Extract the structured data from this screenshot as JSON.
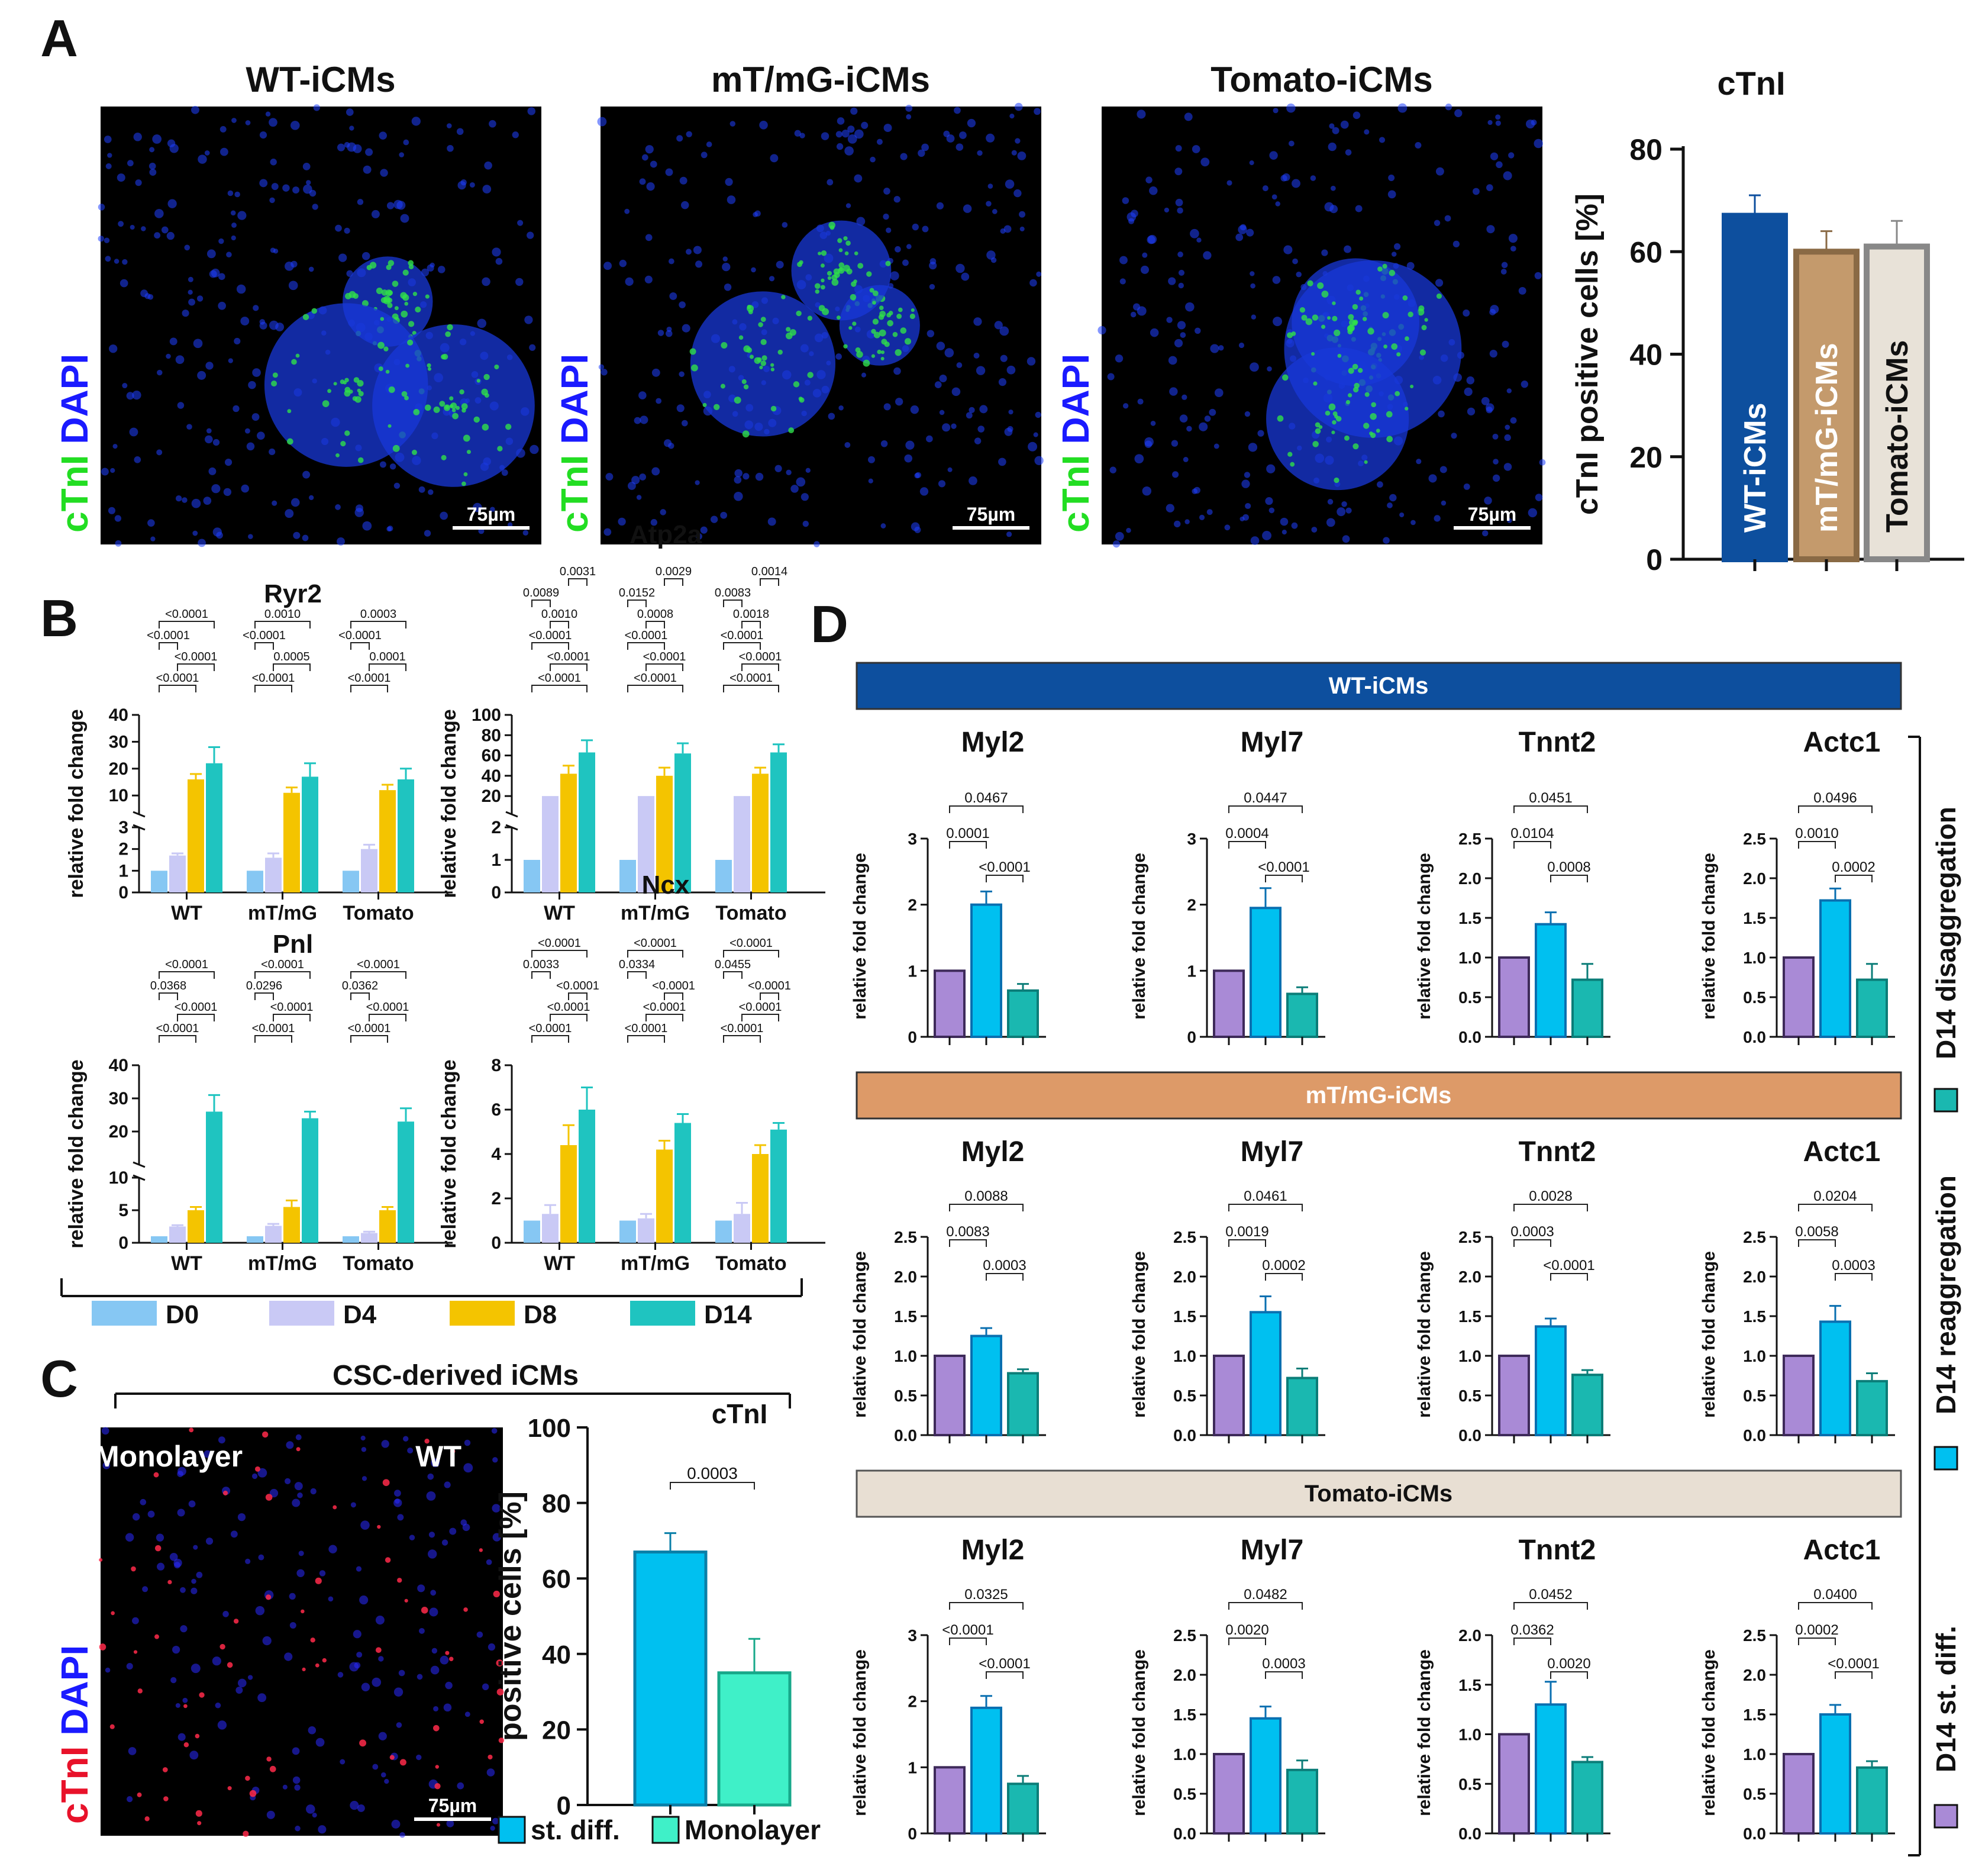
{
  "panels": {
    "A": "A",
    "B": "B",
    "C": "C",
    "D": "D"
  },
  "legend_B": [
    {
      "label": "D0",
      "color": "#86c7f3"
    },
    {
      "label": "D4",
      "color": "#c9c9f5"
    },
    {
      "label": "D8",
      "color": "#f4c400"
    },
    {
      "label": "D14",
      "color": "#1fc4c0"
    }
  ],
  "legend_C": [
    {
      "label": "st. diff.",
      "color": "#00c0f0"
    },
    {
      "label": "Monolayer",
      "color": "#3ff0c8"
    }
  ],
  "legend_D": [
    {
      "label": "D14 st. diff.",
      "color": "#a98ad6"
    },
    {
      "label": "D14 reaggregation",
      "color": "#00c0f0"
    },
    {
      "label": "D14 disaggregation",
      "color": "#1ab8b0"
    }
  ],
  "micrographs": [
    {
      "title": "WT-iCMs",
      "stain1": "cTnI",
      "stain2": "DAPI",
      "scale": "75µm"
    },
    {
      "title": "mT/mG-iCMs",
      "stain1": "cTnI",
      "stain2": "DAPI",
      "scale": "75µm"
    },
    {
      "title": "Tomato-iCMs",
      "stain1": "cTnI",
      "stain2": "DAPI",
      "scale": "75µm"
    }
  ],
  "micrograph_C": {
    "title": "CSC-derived iCMs",
    "label_left": "Monolayer",
    "label_right": "WT",
    "stain1": "cTnI",
    "stain2": "DAPI",
    "scale": "75µm"
  },
  "row_headers_D": [
    {
      "label": "WT-iCMs",
      "color": "#0d4f9e",
      "text_color": "#ffffff"
    },
    {
      "label": "mT/mG-iCMs",
      "color": "#dd9a68",
      "text_color": "#ffffff"
    },
    {
      "label": "Tomato-iCMs",
      "color": "#e8dfd3",
      "text_color": "#111111"
    }
  ],
  "chart_data": [
    {
      "id": "A_ctni",
      "type": "bar",
      "title": "cTnI",
      "ylabel": "cTnI positive cells [%]",
      "ylim": [
        0,
        80
      ],
      "yticks": [
        0,
        20,
        40,
        60,
        80
      ],
      "categories": [
        "WT-iCMs",
        "mT/mG-iCMs",
        "Tomato-iCMs"
      ],
      "values": [
        67,
        60,
        61
      ],
      "errors": [
        4,
        4,
        5
      ],
      "colors": [
        "#0d4f9e",
        "#c49a6c",
        "#e8e2d8"
      ],
      "edge": [
        "#0d4f9e",
        "#8a6a45",
        "#888888"
      ],
      "label_colors": [
        "#ffffff",
        "#ffffff",
        "#111111"
      ]
    },
    {
      "id": "B_ryr2",
      "type": "bar",
      "title": "Ryr2",
      "ylabel": "relative fold change",
      "groups": [
        "WT",
        "mT/mG",
        "Tomato"
      ],
      "series_names": [
        "D0",
        "D4",
        "D8",
        "D14"
      ],
      "values": [
        [
          1,
          1.7,
          16,
          22
        ],
        [
          1,
          1.6,
          11,
          17
        ],
        [
          1,
          2.0,
          12,
          16
        ]
      ],
      "errors": [
        [
          0,
          0.1,
          2,
          6
        ],
        [
          0,
          0.2,
          2,
          5
        ],
        [
          0,
          0.2,
          2,
          4
        ]
      ],
      "broken": {
        "lower": [
          0,
          3
        ],
        "upper": [
          3,
          40
        ],
        "lower_ticks": [
          0,
          1,
          2,
          3
        ],
        "upper_ticks": [
          10,
          20,
          30,
          40
        ]
      },
      "pvals": [
        [
          "<0.0001",
          "<0.0001",
          "<0.0001",
          "<0.0001"
        ],
        [
          "<0.0001",
          "0.0005",
          "<0.0001",
          "0.0010"
        ],
        [
          "<0.0001",
          "0.0001",
          "<0.0001",
          "0.0003"
        ]
      ]
    },
    {
      "id": "B_atp2a",
      "type": "bar",
      "title": "Atp2a",
      "ylabel": "relative fold change",
      "groups": [
        "WT",
        "mT/mG",
        "Tomato"
      ],
      "series_names": [
        "D0",
        "D4",
        "D8",
        "D14"
      ],
      "values": [
        [
          1,
          20,
          42,
          63
        ],
        [
          1,
          20,
          40,
          62
        ],
        [
          1,
          20,
          42,
          63
        ]
      ],
      "errors": [
        [
          0,
          0,
          8,
          12
        ],
        [
          0,
          0,
          8,
          10
        ],
        [
          0,
          0,
          6,
          8
        ]
      ],
      "broken": {
        "lower": [
          0,
          2
        ],
        "upper": [
          2,
          100
        ],
        "lower_ticks": [
          0,
          1,
          2
        ],
        "upper_ticks": [
          20,
          40,
          60,
          80,
          100
        ]
      },
      "pvals": [
        [
          "<0.0001",
          "<0.0001",
          "<0.0001",
          "0.0010",
          "0.0089",
          "0.0031"
        ],
        [
          "<0.0001",
          "<0.0001",
          "<0.0001",
          "0.0008",
          "0.0152",
          "0.0029"
        ],
        [
          "<0.0001",
          "<0.0001",
          "<0.0001",
          "0.0018",
          "0.0083",
          "0.0014"
        ]
      ]
    },
    {
      "id": "B_pnl",
      "type": "bar",
      "title": "Pnl",
      "ylabel": "relative fold change",
      "groups": [
        "WT",
        "mT/mG",
        "Tomato"
      ],
      "series_names": [
        "D0",
        "D4",
        "D8",
        "D14"
      ],
      "values": [
        [
          1,
          2.5,
          5,
          26
        ],
        [
          1,
          2.6,
          5.5,
          24
        ],
        [
          1,
          1.5,
          5,
          23
        ]
      ],
      "errors": [
        [
          0,
          0.2,
          0.5,
          5
        ],
        [
          0,
          0.3,
          1,
          2
        ],
        [
          0,
          0.2,
          0.5,
          4
        ]
      ],
      "broken": {
        "lower": [
          0,
          10
        ],
        "upper": [
          10,
          40
        ],
        "lower_ticks": [
          0,
          5,
          10
        ],
        "upper_ticks": [
          20,
          30,
          40
        ]
      },
      "pvals": [
        [
          "<0.0001",
          "<0.0001",
          "0.0368",
          "<0.0001"
        ],
        [
          "<0.0001",
          "<0.0001",
          "0.0296",
          "<0.0001"
        ],
        [
          "<0.0001",
          "<0.0001",
          "0.0362",
          "<0.0001"
        ]
      ]
    },
    {
      "id": "B_ncx",
      "type": "bar",
      "title": "Ncx",
      "ylabel": "relative fold change",
      "groups": [
        "WT",
        "mT/mG",
        "Tomato"
      ],
      "series_names": [
        "D0",
        "D4",
        "D8",
        "D14"
      ],
      "values": [
        [
          1,
          1.3,
          4.4,
          6
        ],
        [
          1,
          1.1,
          4.2,
          5.4
        ],
        [
          1,
          1.3,
          4,
          5.1
        ]
      ],
      "errors": [
        [
          0,
          0.4,
          0.9,
          1
        ],
        [
          0,
          0.2,
          0.4,
          0.4
        ],
        [
          0,
          0.5,
          0.4,
          0.3
        ]
      ],
      "ylim": [
        0,
        8
      ],
      "yticks": [
        0,
        2,
        4,
        6,
        8
      ],
      "pvals": [
        [
          "<0.0001",
          "<0.0001",
          "<0.0001",
          "0.0033",
          "<0.0001"
        ],
        [
          "<0.0001",
          "<0.0001",
          "<0.0001",
          "0.0334",
          "<0.0001"
        ],
        [
          "<0.0001",
          "<0.0001",
          "<0.0001",
          "0.0455",
          "<0.0001"
        ]
      ]
    },
    {
      "id": "C_ctni",
      "type": "bar",
      "title": "cTnI",
      "ylabel": "positive cells [%]",
      "ylim": [
        0,
        100
      ],
      "yticks": [
        0,
        20,
        40,
        60,
        80,
        100
      ],
      "categories": [
        "st. diff.",
        "Monolayer"
      ],
      "values": [
        67,
        35
      ],
      "errors": [
        5,
        9
      ],
      "pval": "0.0003"
    },
    {
      "id": "D",
      "type": "bar",
      "ylabel": "relative fold change",
      "series_names": [
        "D14 st. diff.",
        "D14 reaggregation",
        "D14 disaggregation"
      ],
      "rows": [
        [
          {
            "title": "Myl2",
            "ymax": 3,
            "yticks": [
              "0",
              "1",
              "2",
              "3"
            ],
            "values": [
              1,
              2,
              0.7
            ],
            "errors": [
              0,
              0.2,
              0.1
            ],
            "p": [
              "0.0467",
              "0.0001",
              "<0.0001"
            ]
          },
          {
            "title": "Myl7",
            "ymax": 3,
            "yticks": [
              "0",
              "1",
              "2",
              "3"
            ],
            "values": [
              1,
              1.95,
              0.65
            ],
            "errors": [
              0,
              0.3,
              0.1
            ],
            "p": [
              "0.0447",
              "0.0004",
              "<0.0001"
            ]
          },
          {
            "title": "Tnnt2",
            "ymax": 2.5,
            "yticks": [
              "0.0",
              "0.5",
              "1.0",
              "1.5",
              "2.0",
              "2.5"
            ],
            "values": [
              1,
              1.42,
              0.72
            ],
            "errors": [
              0,
              0.15,
              0.2
            ],
            "p": [
              "0.0451",
              "0.0104",
              "0.0008"
            ]
          },
          {
            "title": "Actc1",
            "ymax": 2.5,
            "yticks": [
              "0.0",
              "0.5",
              "1.0",
              "1.5",
              "2.0",
              "2.5"
            ],
            "values": [
              1,
              1.72,
              0.72
            ],
            "errors": [
              0,
              0.15,
              0.2
            ],
            "p": [
              "0.0496",
              "0.0010",
              "0.0002"
            ]
          }
        ],
        [
          {
            "title": "Myl2",
            "ymax": 2.5,
            "yticks": [
              "0.0",
              "0.5",
              "1.0",
              "1.5",
              "2.0",
              "2.5"
            ],
            "values": [
              1,
              1.25,
              0.78
            ],
            "errors": [
              0,
              0.1,
              0.05
            ],
            "p": [
              "0.0088",
              "0.0083",
              "0.0003"
            ]
          },
          {
            "title": "Myl7",
            "ymax": 2.5,
            "yticks": [
              "0.0",
              "0.5",
              "1.0",
              "1.5",
              "2.0",
              "2.5"
            ],
            "values": [
              1,
              1.55,
              0.72
            ],
            "errors": [
              0,
              0.2,
              0.12
            ],
            "p": [
              "0.0461",
              "0.0019",
              "0.0002"
            ]
          },
          {
            "title": "Tnnt2",
            "ymax": 2.5,
            "yticks": [
              "0.0",
              "0.5",
              "1.0",
              "1.5",
              "2.0",
              "2.5"
            ],
            "values": [
              1,
              1.37,
              0.76
            ],
            "errors": [
              0,
              0.1,
              0.06
            ],
            "p": [
              "0.0028",
              "0.0003",
              "<0.0001"
            ]
          },
          {
            "title": "Actc1",
            "ymax": 2.5,
            "yticks": [
              "0.0",
              "0.5",
              "1.0",
              "1.5",
              "2.0",
              "2.5"
            ],
            "values": [
              1,
              1.43,
              0.68
            ],
            "errors": [
              0,
              0.2,
              0.1
            ],
            "p": [
              "0.0204",
              "0.0058",
              "0.0003"
            ]
          }
        ],
        [
          {
            "title": "Myl2",
            "ymax": 3,
            "yticks": [
              "0",
              "1",
              "2",
              "3"
            ],
            "values": [
              1,
              1.9,
              0.75
            ],
            "errors": [
              0,
              0.18,
              0.12
            ],
            "p": [
              "0.0325",
              "<0.0001",
              "<0.0001"
            ]
          },
          {
            "title": "Myl7",
            "ymax": 2.5,
            "yticks": [
              "0.0",
              "0.5",
              "1.0",
              "1.5",
              "2.0",
              "2.5"
            ],
            "values": [
              1,
              1.45,
              0.8
            ],
            "errors": [
              0,
              0.15,
              0.12
            ],
            "p": [
              "0.0482",
              "0.0020",
              "0.0003"
            ]
          },
          {
            "title": "Tnnt2",
            "ymax": 2.0,
            "yticks": [
              "0.0",
              "0.5",
              "1.0",
              "1.5",
              "2.0"
            ],
            "values": [
              1,
              1.3,
              0.72
            ],
            "errors": [
              0,
              0.23,
              0.05
            ],
            "p": [
              "0.0452",
              "0.0362",
              "0.0020"
            ]
          },
          {
            "title": "Actc1",
            "ymax": 2.5,
            "yticks": [
              "0.0",
              "0.5",
              "1.0",
              "1.5",
              "2.0",
              "2.5"
            ],
            "values": [
              1,
              1.5,
              0.83
            ],
            "errors": [
              0,
              0.12,
              0.08
            ],
            "p": [
              "0.0400",
              "0.0002",
              "<0.0001"
            ]
          }
        ]
      ]
    }
  ]
}
